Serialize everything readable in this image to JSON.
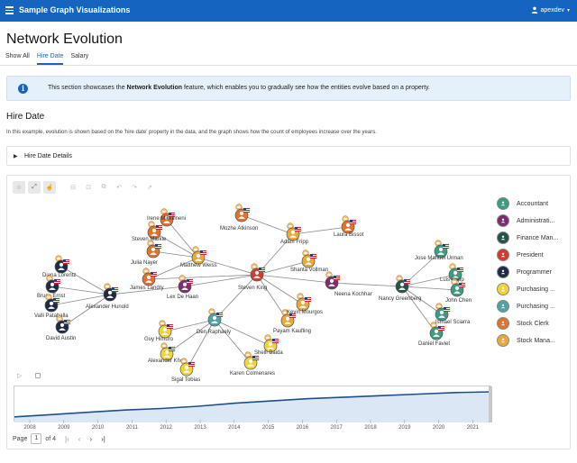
{
  "header": {
    "app_title": "Sample Graph Visualizations",
    "user_name": "apexdev"
  },
  "page": {
    "title": "Network Evolution"
  },
  "tabs": [
    {
      "label": "Show All",
      "active": false
    },
    {
      "label": "Hire Date",
      "active": true
    },
    {
      "label": "Salary",
      "active": false
    }
  ],
  "info": {
    "prefix": "This section showcases the ",
    "bold": "Network Evolution",
    "suffix": " feature, which enables you to gradually see how the entities evolve based on a property."
  },
  "section": {
    "title": "Hire Date",
    "description": "In this example, evolution is shown based on the 'hire date' property in the data, and the graph shows how the count of employees increase over the years."
  },
  "collapsible": {
    "label": "Hire Date Details"
  },
  "legend": [
    {
      "label": "Accountant",
      "color": "#3b9c82"
    },
    {
      "label": "Administrati...",
      "color": "#7b2d6e"
    },
    {
      "label": "Finance Man...",
      "color": "#24534a"
    },
    {
      "label": "President",
      "color": "#d33b2c"
    },
    {
      "label": "Programmer",
      "color": "#1f2a44"
    },
    {
      "label": "Purchasing ...",
      "color": "#f2d33b"
    },
    {
      "label": "Purchasing ...",
      "color": "#4fa3a6"
    },
    {
      "label": "Stock Clerk",
      "color": "#e0722a"
    },
    {
      "label": "Stock Mana...",
      "color": "#e8a93a"
    }
  ],
  "graph": {
    "nodes": [
      {
        "id": "kochhar",
        "label": "Neena Kochhar",
        "role": 1
      },
      {
        "id": "king",
        "label": "Steven King",
        "role": 3
      },
      {
        "id": "mikkilineni",
        "label": "Irene Mikkilineni",
        "role": 7
      },
      {
        "id": "markle",
        "label": "Steven Markle",
        "role": 7
      },
      {
        "id": "nayer",
        "label": "Julia Nayer",
        "role": 7
      },
      {
        "id": "weiss",
        "label": "Matthew Weiss",
        "role": 8
      },
      {
        "id": "landry",
        "label": "James Landry",
        "role": 7
      },
      {
        "id": "dehaan",
        "label": "Lex De Haan",
        "role": 1
      },
      {
        "id": "atkinson",
        "label": "Mozhe Atkinson",
        "role": 7
      },
      {
        "id": "fripp",
        "label": "Adam Fripp",
        "role": 8
      },
      {
        "id": "bissot",
        "label": "Laura Bissot",
        "role": 7
      },
      {
        "id": "vollman",
        "label": "Shanta Vollman",
        "role": 8
      },
      {
        "id": "lorentz",
        "label": "Diana Lorentz",
        "role": 4
      },
      {
        "id": "ernst",
        "label": "Bruce Ernst",
        "role": 4
      },
      {
        "id": "pataballa",
        "label": "Valli Pataballa",
        "role": 4
      },
      {
        "id": "austin",
        "label": "David Austin",
        "role": 4
      },
      {
        "id": "hunold",
        "label": "Alexander Hunold",
        "role": 4
      },
      {
        "id": "raphaely",
        "label": "Den Raphaely",
        "role": 6
      },
      {
        "id": "himuro",
        "label": "Guy Himuro",
        "role": 5
      },
      {
        "id": "khoo",
        "label": "Alexander Khoo",
        "role": 5
      },
      {
        "id": "tobias",
        "label": "Sigal Tobias",
        "role": 5
      },
      {
        "id": "colmenares",
        "label": "Karen Colmenares",
        "role": 5
      },
      {
        "id": "baida",
        "label": "Shelli Baida",
        "role": 5
      },
      {
        "id": "kaufling",
        "label": "Payam Kaufling",
        "role": 8
      },
      {
        "id": "mourgos",
        "label": "Kevin Mourgos",
        "role": 8
      },
      {
        "id": "greenberg",
        "label": "Nancy Greenberg",
        "role": 2
      },
      {
        "id": "urman",
        "label": "Jose Manuel Urman",
        "role": 0
      },
      {
        "id": "popp",
        "label": "Luis Popp",
        "role": 0
      },
      {
        "id": "chen",
        "label": "John Chen",
        "role": 0
      },
      {
        "id": "sciarra",
        "label": "Ismael Sciarra",
        "role": 0
      },
      {
        "id": "faviet",
        "label": "Daniel Faviet",
        "role": 0
      }
    ],
    "edges": [
      [
        "king",
        "kochhar"
      ],
      [
        "king",
        "dehaan"
      ],
      [
        "king",
        "weiss"
      ],
      [
        "king",
        "fripp"
      ],
      [
        "king",
        "vollman"
      ],
      [
        "king",
        "raphaely"
      ],
      [
        "king",
        "kaufling"
      ],
      [
        "king",
        "mourgos"
      ],
      [
        "king",
        "landry"
      ],
      [
        "weiss",
        "mikkilineni"
      ],
      [
        "weiss",
        "markle"
      ],
      [
        "weiss",
        "nayer"
      ],
      [
        "weiss",
        "landry"
      ],
      [
        "fripp",
        "atkinson"
      ],
      [
        "fripp",
        "bissot"
      ],
      [
        "dehaan",
        "hunold"
      ],
      [
        "hunold",
        "lorentz"
      ],
      [
        "hunold",
        "ernst"
      ],
      [
        "hunold",
        "pataballa"
      ],
      [
        "hunold",
        "austin"
      ],
      [
        "raphaely",
        "himuro"
      ],
      [
        "raphaely",
        "khoo"
      ],
      [
        "raphaely",
        "tobias"
      ],
      [
        "raphaely",
        "colmenares"
      ],
      [
        "raphaely",
        "baida"
      ],
      [
        "kochhar",
        "greenberg"
      ],
      [
        "greenberg",
        "urman"
      ],
      [
        "greenberg",
        "popp"
      ],
      [
        "greenberg",
        "chen"
      ],
      [
        "greenberg",
        "sciarra"
      ],
      [
        "greenberg",
        "faviet"
      ]
    ]
  },
  "timeline": {
    "years": [
      "2008",
      "2009",
      "2010",
      "2011",
      "2012",
      "2013",
      "2014",
      "2015",
      "2016",
      "2017",
      "2018",
      "2019",
      "2020",
      "2021"
    ],
    "series": [
      5,
      8,
      11,
      14,
      16,
      19,
      23,
      26,
      29,
      31,
      33,
      35,
      37,
      38
    ]
  },
  "pager": {
    "label": "Page",
    "current": "1",
    "of": "of 4"
  }
}
